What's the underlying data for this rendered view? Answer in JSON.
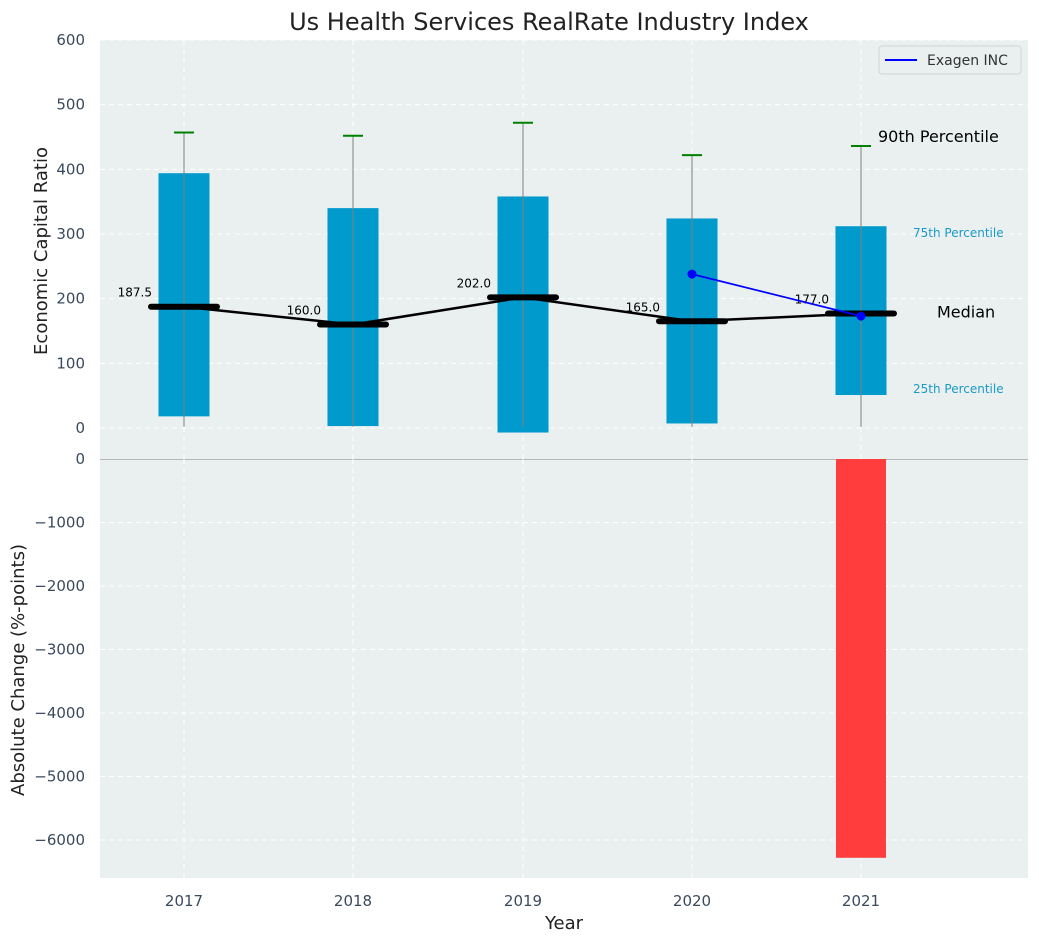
{
  "chart_data": [
    {
      "type": "box",
      "title": "Us Health Services RealRate Industry Index",
      "ylabel": "Economic Capital Ratio",
      "ylim": [
        -50,
        600
      ],
      "yticks": [
        0,
        100,
        200,
        300,
        400,
        500,
        600
      ],
      "categories": [
        "2017",
        "2018",
        "2019",
        "2020",
        "2021"
      ],
      "p25": [
        18,
        3,
        -7,
        7,
        51
      ],
      "p75": [
        394,
        340,
        358,
        324,
        312
      ],
      "median": [
        187.5,
        160.0,
        202.0,
        165.0,
        177.0
      ],
      "median_labels": [
        "187.5",
        "160.0",
        "202.0",
        "165.0",
        "177.0"
      ],
      "p90": [
        457,
        452,
        472,
        422,
        436
      ],
      "whisker_low": [
        2,
        2,
        2,
        2,
        2
      ],
      "series": [
        {
          "name": "Exagen INC",
          "x": [
            "2020",
            "2021"
          ],
          "values": [
            238,
            173
          ]
        }
      ],
      "annotations": {
        "p90": "90th Percentile",
        "p75": "75th Percentile",
        "median": "Median",
        "p25": "25th Percentile"
      },
      "legend": "top-right",
      "grid": true
    },
    {
      "type": "bar",
      "ylabel": "Absolute Change (%-points)",
      "xlabel": "Year",
      "ylim": [
        -6600,
        0
      ],
      "yticks": [
        0,
        -1000,
        -2000,
        -3000,
        -4000,
        -5000,
        -6000
      ],
      "ytick_labels": [
        "0",
        "−1000",
        "−2000",
        "−3000",
        "−4000",
        "−5000",
        "−6000"
      ],
      "categories": [
        "2017",
        "2018",
        "2019",
        "2020",
        "2021"
      ],
      "values": [
        0,
        0,
        0,
        0,
        -6280
      ],
      "grid": true
    }
  ],
  "colors": {
    "box": "#009acd",
    "median": "#000000",
    "p90_cap": "#008000",
    "company": "#0000ff",
    "negative_bar": "#ff3d3d",
    "plot_bg": "#eaeff0"
  }
}
